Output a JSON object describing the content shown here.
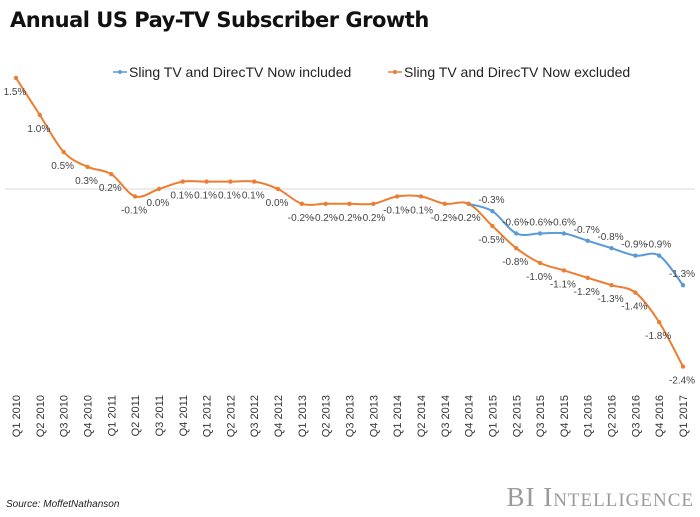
{
  "title": "Annual US Pay-TV Subscriber Growth",
  "source": "Source: MoffetNathanson",
  "logo": "BI Intelligence",
  "chart_data": {
    "type": "line",
    "title": "Annual US Pay-TV Subscriber Growth",
    "xlabel": "",
    "ylabel": "",
    "ylim": [
      -2.6,
      1.6
    ],
    "grid": "zero line only",
    "legend_position": "top-right",
    "categories": [
      "Q1 2010",
      "Q2 2010",
      "Q3 2010",
      "Q4 2010",
      "Q1 2011",
      "Q2 2011",
      "Q3 2011",
      "Q4 2011",
      "Q1 2012",
      "Q2 2012",
      "Q3 2012",
      "Q4 2012",
      "Q1 2013",
      "Q2 2013",
      "Q3 2013",
      "Q4 2013",
      "Q1 2014",
      "Q2 2014",
      "Q3 2014",
      "Q4 2014",
      "Q1 2015",
      "Q2 2015",
      "Q3 2015",
      "Q4 2015",
      "Q1 2016",
      "Q2 2016",
      "Q3 2016",
      "Q4 2016",
      "Q1 2017"
    ],
    "series": [
      {
        "name": "Sling TV and DirecTV Now included",
        "color": "#5b9bd5",
        "values": [
          null,
          null,
          null,
          null,
          null,
          null,
          null,
          null,
          null,
          null,
          null,
          null,
          null,
          null,
          null,
          null,
          null,
          null,
          null,
          -0.2,
          -0.3,
          -0.6,
          -0.6,
          -0.6,
          -0.7,
          -0.8,
          -0.9,
          -0.9,
          -1.3
        ]
      },
      {
        "name": "Sling TV and DirecTV Now excluded",
        "color": "#ed7d31",
        "values": [
          1.5,
          1.0,
          0.5,
          0.3,
          0.2,
          -0.1,
          0.0,
          0.1,
          0.1,
          0.1,
          0.1,
          0.0,
          -0.2,
          -0.2,
          -0.2,
          -0.2,
          -0.1,
          -0.1,
          -0.2,
          -0.2,
          -0.5,
          -0.8,
          -1.0,
          -1.1,
          -1.2,
          -1.3,
          -1.4,
          -1.8,
          -2.4
        ]
      }
    ]
  }
}
